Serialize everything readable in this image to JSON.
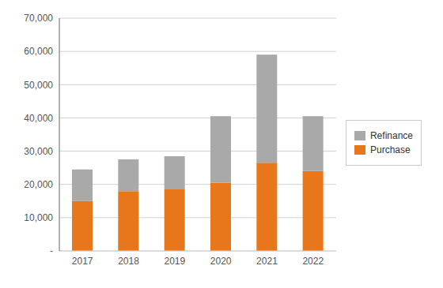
{
  "chart_data": {
    "type": "bar",
    "stacked": true,
    "categories": [
      "2017",
      "2018",
      "2019",
      "2020",
      "2021",
      "2022"
    ],
    "series": [
      {
        "name": "Purchase",
        "color": "#E8761A",
        "values": [
          15000,
          18000,
          18500,
          20500,
          26500,
          24000
        ]
      },
      {
        "name": "Refinance",
        "color": "#A9A9A9",
        "values": [
          9500,
          9500,
          10000,
          20000,
          32500,
          16500
        ]
      }
    ],
    "ylim": [
      0,
      70000
    ],
    "yticks": [
      {
        "value": 0,
        "label": "-"
      },
      {
        "value": 10000,
        "label": "10,000"
      },
      {
        "value": 20000,
        "label": "20,000"
      },
      {
        "value": 30000,
        "label": "30,000"
      },
      {
        "value": 40000,
        "label": "40,000"
      },
      {
        "value": 50000,
        "label": "50,000"
      },
      {
        "value": 60000,
        "label": "60,000"
      },
      {
        "value": 70000,
        "label": "70,000"
      }
    ],
    "grid": true,
    "legend": "right"
  }
}
